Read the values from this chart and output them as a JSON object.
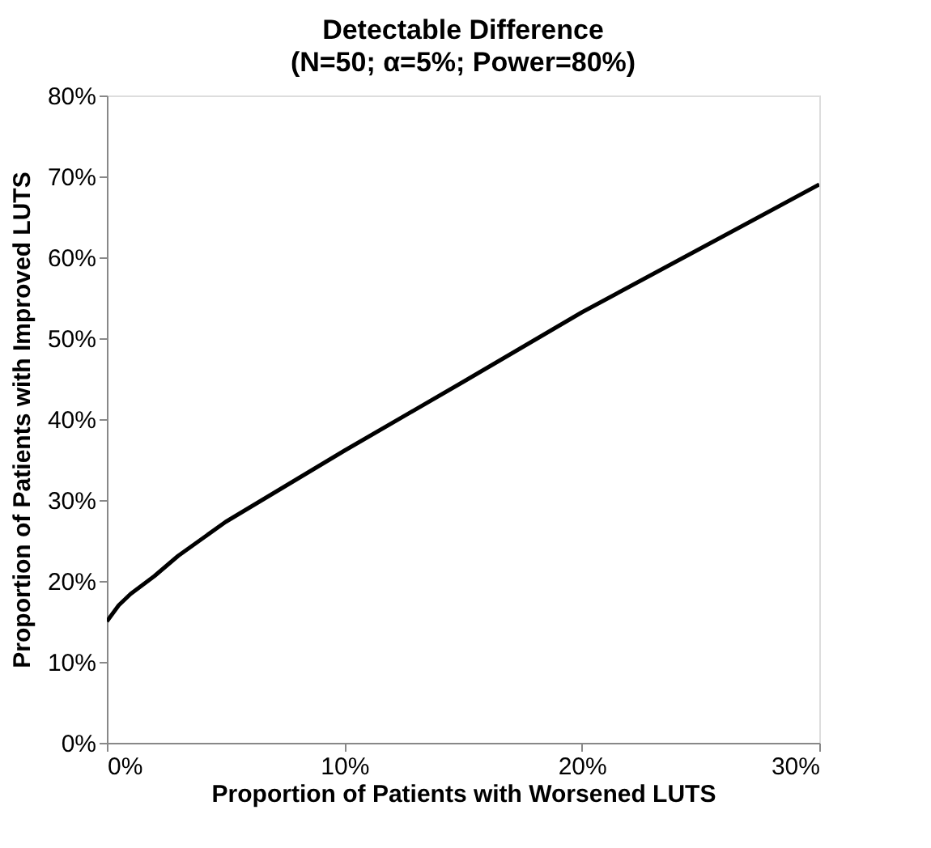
{
  "chart_data": {
    "type": "line",
    "title": "Detectable Difference",
    "subtitle": "(N=50; α=5%; Power=80%)",
    "xlabel": "Proportion of Patients with Worsened LUTS",
    "ylabel": "Proportion of Patients with Improved LUTS",
    "x": [
      0,
      0.5,
      1,
      2,
      3,
      5,
      7.5,
      10,
      15,
      20,
      25,
      30
    ],
    "series": [
      {
        "color": "#000000",
        "values": [
          15,
          17,
          18.4,
          20.6,
          23.1,
          27.3,
          31.7,
          36.1,
          44.6,
          53.2,
          61.1,
          69
        ]
      }
    ],
    "xlim": [
      0,
      30
    ],
    "ylim": [
      0,
      80
    ],
    "xticks": [
      {
        "value": 0,
        "label": "0%"
      },
      {
        "value": 10,
        "label": "10%"
      },
      {
        "value": 20,
        "label": "20%"
      },
      {
        "value": 30,
        "label": "30%"
      }
    ],
    "yticks": [
      {
        "value": 0,
        "label": "0%"
      },
      {
        "value": 10,
        "label": "10%"
      },
      {
        "value": 20,
        "label": "20%"
      },
      {
        "value": 30,
        "label": "30%"
      },
      {
        "value": 40,
        "label": "40%"
      },
      {
        "value": 50,
        "label": "50%"
      },
      {
        "value": 60,
        "label": "60%"
      },
      {
        "value": 70,
        "label": "70%"
      },
      {
        "value": 80,
        "label": "80%"
      }
    ],
    "grid": false,
    "legend": false,
    "marker": "none",
    "line_style": "solid"
  }
}
